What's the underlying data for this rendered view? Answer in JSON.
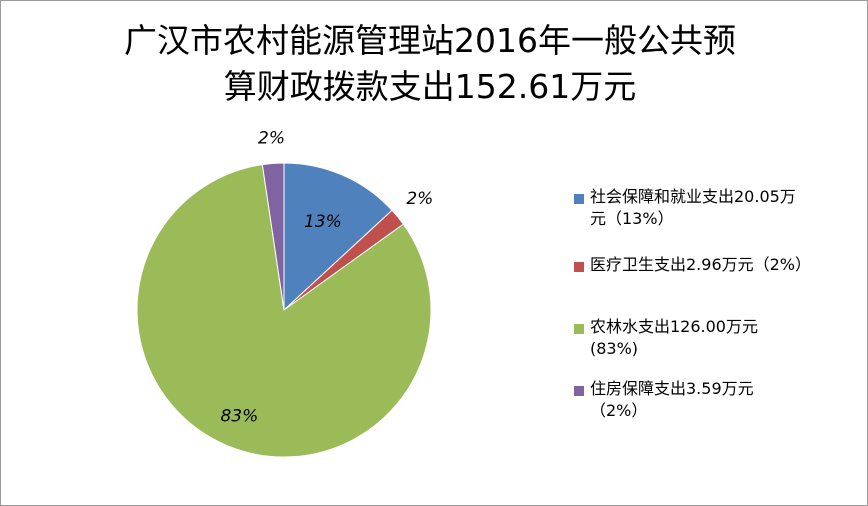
{
  "title": {
    "line1": "广汉市农村能源管理站2016年一般公共预",
    "line2": "算财政拨款支出152.61万元"
  },
  "chart_data": {
    "type": "pie",
    "title": "广汉市农村能源管理站2016年一般公共预算财政拨款支出152.61万元",
    "legend_position": "right",
    "slices": [
      {
        "name": "社会保障和就业支出",
        "value": 20.05,
        "percent_label": "13%",
        "color": "#4F81BD",
        "legend_line1": "社会保障和就业支出20.05万",
        "legend_line2": "元（13%）"
      },
      {
        "name": "医疗卫生支出",
        "value": 2.96,
        "percent_label": "2%",
        "color": "#C0504D",
        "legend_line1": "医疗卫生支出2.96万元（2%）",
        "legend_line2": ""
      },
      {
        "name": "农林水支出",
        "value": 126.0,
        "percent_label": "83%",
        "color": "#9BBB59",
        "legend_line1": "农林水支出126.00万元",
        "legend_line2": "(83%)"
      },
      {
        "name": "住房保障支出",
        "value": 3.59,
        "percent_label": "2%",
        "color": "#8064A2",
        "legend_line1": "住房保障支出3.59万元",
        "legend_line2": "（2%）"
      }
    ]
  }
}
